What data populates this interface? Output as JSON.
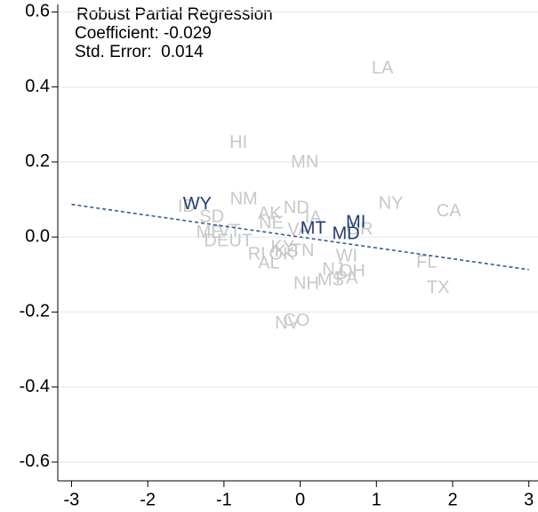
{
  "chart_data": {
    "type": "scatter",
    "annotations": [
      "Robust Partial Regression",
      "Coefficient: -0.029",
      "Std. Error:  0.014"
    ],
    "xlim": [
      -3.18,
      3.12
    ],
    "ylim": [
      -0.65,
      0.62
    ],
    "xticks": [
      -3,
      -2,
      -1,
      0,
      1,
      2,
      3
    ],
    "yticks": [
      0.6,
      0.4,
      0.2,
      {
        "value": 0,
        "label": "0.0"
      },
      -0.2,
      -0.4,
      -0.6
    ],
    "grid": true,
    "series": [
      {
        "color": "#c8c8c8",
        "labels": [
          "LA",
          "HI",
          "MN",
          "NY",
          "CA",
          "NM",
          "ND",
          "AK",
          "IA",
          "SD",
          "ID",
          "ME",
          "VT",
          "DE",
          "UT",
          "OR",
          "KY",
          "KS",
          "RI",
          "OK",
          "TN",
          "AL",
          "WI",
          "NJ",
          "OH",
          "FL",
          "TX",
          "NH",
          "MS",
          "PA",
          "NV",
          "CO",
          "NE",
          "VA"
        ],
        "x": [
          1.08,
          -0.81,
          0.06,
          1.19,
          1.95,
          -0.74,
          -0.05,
          -0.4,
          0.17,
          -1.16,
          -1.49,
          -1.19,
          -0.93,
          -1.1,
          -0.78,
          0.78,
          -0.23,
          -0.18,
          -0.57,
          -0.24,
          0.03,
          -0.41,
          0.61,
          0.43,
          0.68,
          1.66,
          1.81,
          0.08,
          0.4,
          0.61,
          -0.17,
          -0.05,
          -0.38,
          -0.02
        ],
        "values": [
          0.448,
          0.25,
          0.198,
          0.088,
          0.067,
          0.1,
          0.076,
          0.06,
          0.05,
          0.052,
          0.079,
          0.01,
          0.014,
          -0.012,
          -0.012,
          0.019,
          -0.029,
          -0.04,
          -0.048,
          -0.048,
          -0.038,
          -0.071,
          -0.052,
          -0.088,
          -0.093,
          -0.069,
          -0.136,
          -0.126,
          -0.117,
          -0.112,
          -0.231,
          -0.224,
          0.036,
          0.018
        ]
      },
      {
        "color": "#1f3d73",
        "labels": [
          "WY",
          "MI",
          "MT",
          "MD"
        ],
        "x": [
          -1.35,
          0.73,
          0.17,
          0.6
        ],
        "values": [
          0.086,
          0.038,
          0.021,
          0.007
        ]
      }
    ],
    "fit_line": {
      "color": "#3a5a8c",
      "x": [
        -3,
        3
      ],
      "values": [
        0.087,
        -0.087
      ]
    }
  }
}
